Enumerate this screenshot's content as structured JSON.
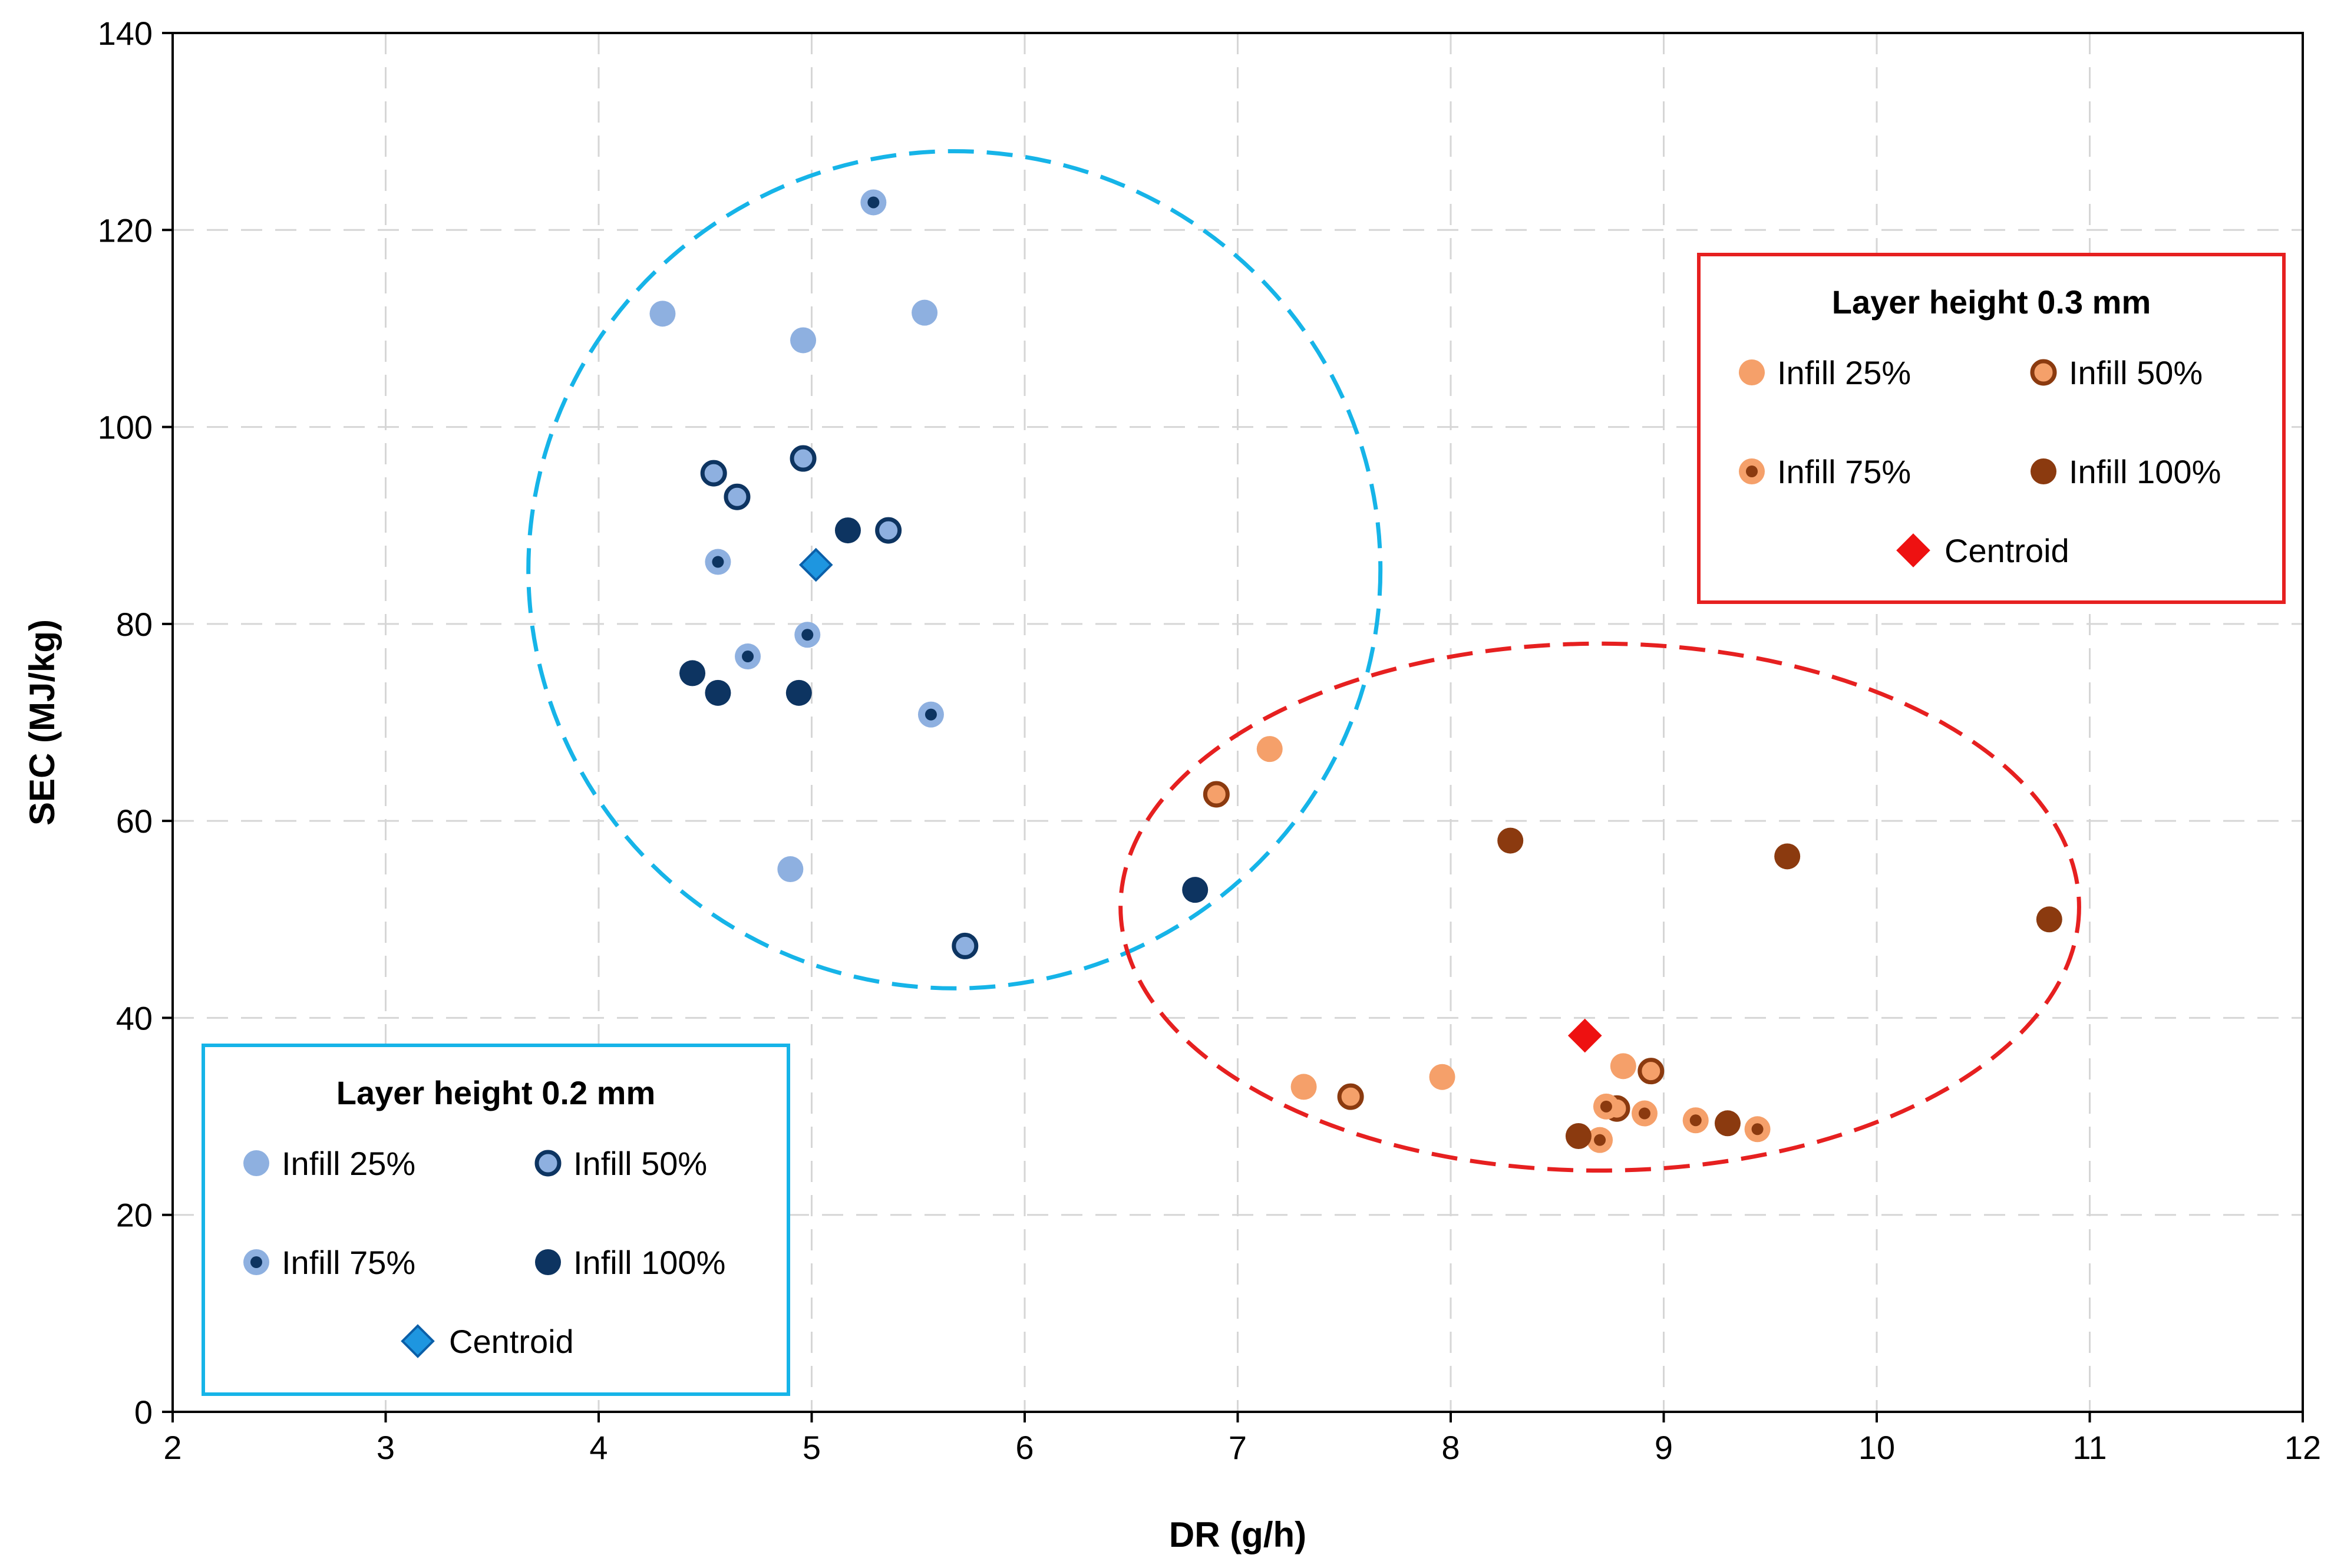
{
  "chart_data": {
    "type": "scatter",
    "xlabel": "DR (g/h)",
    "ylabel": "SEC (MJ/kg)",
    "xlim": [
      2,
      12
    ],
    "ylim": [
      0,
      140
    ],
    "xticks": [
      2,
      3,
      4,
      5,
      6,
      7,
      8,
      9,
      10,
      11,
      12
    ],
    "yticks": [
      0,
      20,
      40,
      60,
      80,
      100,
      120,
      140
    ],
    "grid": true,
    "colors": {
      "light_blue": "#8eb0e0",
      "dark_blue": "#0d3461",
      "centroid_blue": "#1e96e0",
      "cluster_blue": "#16b4e8",
      "light_orange": "#f5a06a",
      "dark_brown": "#8b3a0f",
      "centroid_red": "#ee1111",
      "cluster_red": "#e62020"
    },
    "groups": [
      {
        "name": "Layer height 0.2 mm",
        "legend_position": "bottom-left",
        "cluster": {
          "cx": 5.67,
          "cy": 85.5,
          "rx": 2.0,
          "ry": 42.5,
          "color": "#16b4e8"
        },
        "series": [
          {
            "name": "Infill 25%",
            "marker": "fill",
            "color": "#8eb0e0",
            "ring": "#8eb0e0",
            "center": "#8eb0e0",
            "points": [
              [
                4.3,
                111.5
              ],
              [
                4.96,
                108.8
              ],
              [
                5.53,
                111.6
              ],
              [
                4.9,
                55.1
              ]
            ]
          },
          {
            "name": "Infill 50%",
            "marker": "ring",
            "color": "#8eb0e0",
            "ring": "#0d3461",
            "center": "#8eb0e0",
            "points": [
              [
                4.54,
                95.3
              ],
              [
                4.65,
                92.9
              ],
              [
                4.96,
                96.8
              ],
              [
                5.36,
                89.5
              ],
              [
                5.72,
                47.3
              ]
            ]
          },
          {
            "name": "Infill 75%",
            "marker": "dot",
            "color": "#8eb0e0",
            "ring": "#8eb0e0",
            "center": "#0d3461",
            "points": [
              [
                5.29,
                122.8
              ],
              [
                4.56,
                86.3
              ],
              [
                4.7,
                76.7
              ],
              [
                4.98,
                78.9
              ],
              [
                5.56,
                70.8
              ]
            ]
          },
          {
            "name": "Infill 100%",
            "marker": "fill",
            "color": "#0d3461",
            "ring": "#0d3461",
            "center": "#0d3461",
            "points": [
              [
                5.17,
                89.5
              ],
              [
                4.44,
                75.0
              ],
              [
                4.56,
                73.0
              ],
              [
                4.94,
                73.0
              ],
              [
                6.8,
                53.0
              ]
            ]
          }
        ],
        "centroid": {
          "label": "Centroid",
          "x": 5.02,
          "y": 86.0,
          "color": "#1e96e0"
        }
      },
      {
        "name": "Layer height 0.3 mm",
        "legend_position": "top-right",
        "cluster": {
          "cx": 8.7,
          "cy": 51.25,
          "rx": 2.25,
          "ry": 26.75,
          "color": "#e62020"
        },
        "series": [
          {
            "name": "Infill 25%",
            "marker": "fill",
            "color": "#f5a06a",
            "ring": "#f5a06a",
            "center": "#f5a06a",
            "points": [
              [
                7.15,
                67.3
              ],
              [
                7.31,
                33.0
              ],
              [
                7.96,
                34.0
              ],
              [
                8.81,
                35.1
              ]
            ]
          },
          {
            "name": "Infill 50%",
            "marker": "ring",
            "color": "#f5a06a",
            "ring": "#8b3a0f",
            "center": "#f5a06a",
            "points": [
              [
                6.9,
                62.7
              ],
              [
                7.53,
                32.0
              ],
              [
                8.78,
                30.8
              ],
              [
                8.94,
                34.6
              ]
            ]
          },
          {
            "name": "Infill 75%",
            "marker": "dot",
            "color": "#f5a06a",
            "ring": "#f5a06a",
            "center": "#8b3a0f",
            "points": [
              [
                8.73,
                31.0
              ],
              [
                8.7,
                27.6
              ],
              [
                8.91,
                30.3
              ],
              [
                9.15,
                29.6
              ],
              [
                9.44,
                28.7
              ]
            ]
          },
          {
            "name": "Infill 100%",
            "marker": "fill",
            "color": "#8b3a0f",
            "ring": "#8b3a0f",
            "center": "#8b3a0f",
            "points": [
              [
                8.28,
                58.0
              ],
              [
                9.58,
                56.4
              ],
              [
                10.81,
                50.0
              ],
              [
                8.6,
                28.0
              ],
              [
                9.3,
                29.3
              ]
            ]
          }
        ],
        "centroid": {
          "label": "Centroid",
          "x": 8.63,
          "y": 38.2,
          "color": "#ee1111"
        }
      }
    ]
  }
}
